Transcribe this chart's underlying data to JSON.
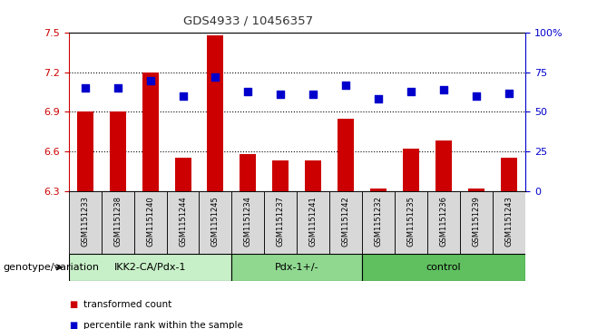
{
  "title": "GDS4933 / 10456357",
  "samples": [
    "GSM1151233",
    "GSM1151238",
    "GSM1151240",
    "GSM1151244",
    "GSM1151245",
    "GSM1151234",
    "GSM1151237",
    "GSM1151241",
    "GSM1151242",
    "GSM1151232",
    "GSM1151235",
    "GSM1151236",
    "GSM1151239",
    "GSM1151243"
  ],
  "transformed_count": [
    6.9,
    6.9,
    7.2,
    6.55,
    7.48,
    6.58,
    6.53,
    6.53,
    6.85,
    6.32,
    6.62,
    6.68,
    6.32,
    6.55
  ],
  "percentile_rank": [
    65,
    65,
    70,
    60,
    72,
    63,
    61,
    61,
    67,
    58,
    63,
    64,
    60,
    62
  ],
  "ylim_left": [
    6.3,
    7.5
  ],
  "ylim_right": [
    0,
    100
  ],
  "yticks_left": [
    6.3,
    6.6,
    6.9,
    7.2,
    7.5
  ],
  "yticks_right": [
    0,
    25,
    50,
    75,
    100
  ],
  "ytick_labels_right": [
    "0",
    "25",
    "50",
    "75",
    "100%"
  ],
  "groups": [
    {
      "label": "IKK2-CA/Pdx-1",
      "start": 0,
      "end": 5,
      "color": "#c8f0c8"
    },
    {
      "label": "Pdx-1+/-",
      "start": 5,
      "end": 9,
      "color": "#90d890"
    },
    {
      "label": "control",
      "start": 9,
      "end": 14,
      "color": "#60c060"
    }
  ],
  "bar_color": "#cc0000",
  "dot_color": "#0000cc",
  "bar_width": 0.5,
  "dot_size": 30,
  "background_color": "#ffffff",
  "plot_bg_color": "#ffffff",
  "cell_bg_color": "#d8d8d8",
  "grid_color": "#000000",
  "xlabel_bottom": "genotype/variation",
  "legend_transformed": "transformed count",
  "legend_percentile": "percentile rank within the sample"
}
